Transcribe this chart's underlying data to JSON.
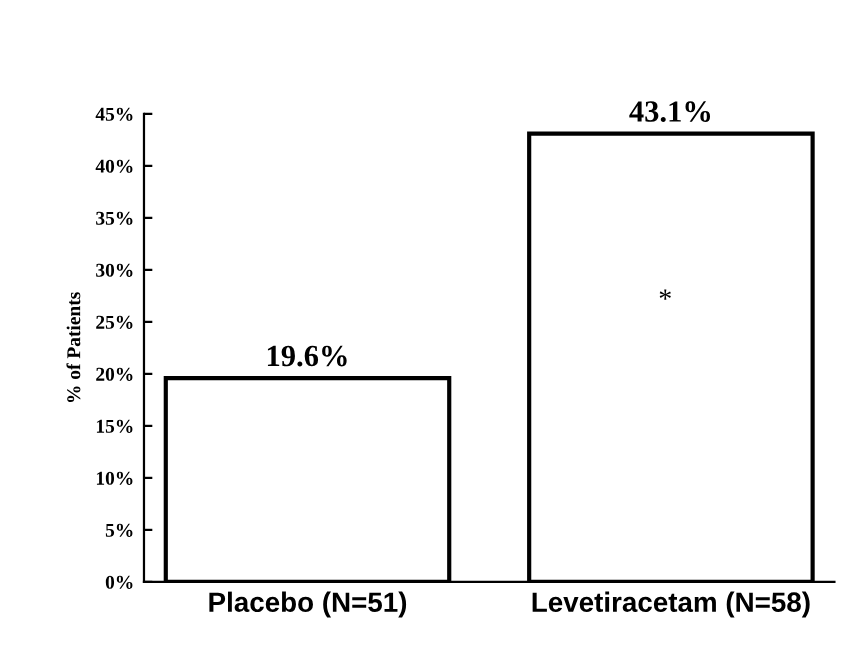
{
  "chart_data": {
    "type": "bar",
    "ylabel": "% of Patients",
    "categories": [
      "Placebo (N=51)",
      "Levetiracetam (N=58)"
    ],
    "values": [
      19.6,
      43.1
    ],
    "color": "#ffffff",
    "value_labels": [
      "19.6%",
      "43.1%"
    ],
    "ylim": [
      0,
      45
    ],
    "yticks": [
      {
        "value": 0,
        "label": "0%"
      },
      {
        "value": 5,
        "label": "5%"
      },
      {
        "value": 10,
        "label": "10%"
      },
      {
        "value": 15,
        "label": "15%"
      },
      {
        "value": 20,
        "label": "20%"
      },
      {
        "value": 25,
        "label": "25%"
      },
      {
        "value": 30,
        "label": "30%"
      },
      {
        "value": 35,
        "label": "35%"
      },
      {
        "value": 40,
        "label": "40%"
      },
      {
        "value": 45,
        "label": "45%"
      }
    ],
    "annotations": [
      "*"
    ],
    "grid": false,
    "legend": false
  }
}
